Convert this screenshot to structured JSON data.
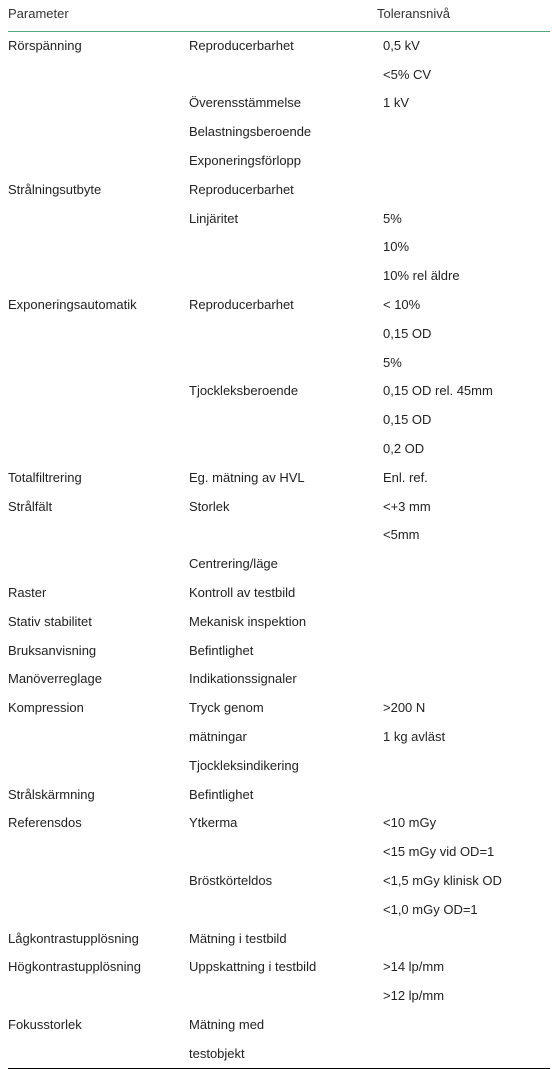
{
  "colors": {
    "border": "#000000",
    "green_rule": "#59a67a",
    "text": "#222222",
    "bg": "#ffffff"
  },
  "headers": {
    "parameter": "Parameter",
    "tolerance": "Toleransnivå"
  },
  "rows": [
    {
      "c1": "Rörspänning",
      "c2": "Reproducerbarhet",
      "c3": " 0,5 kV"
    },
    {
      "c1": "",
      "c2": "",
      "c3": "<5% CV"
    },
    {
      "c1": "",
      "c2": "Överensstämmelse",
      "c3": " 1 kV"
    },
    {
      "c1": "",
      "c2": "Belastningsberoende",
      "c3": ""
    },
    {
      "c1": "",
      "c2": "Exponeringsförlopp",
      "c3": ""
    },
    {
      "c1": "Strålningsutbyte",
      "c2": "Reproducerbarhet",
      "c3": ""
    },
    {
      "c1": "",
      "c2": "Linjäritet",
      "c3": " 5%"
    },
    {
      "c1": "",
      "c2": "",
      "c3": " 10%"
    },
    {
      "c1": "",
      "c2": "",
      "c3": " 10% rel äldre"
    },
    {
      "c1": "Exponeringsautomatik",
      "c2": "Reproducerbarhet",
      "c3": "<  10%"
    },
    {
      "c1": "",
      "c2": "",
      "c3": " 0,15 OD"
    },
    {
      "c1": "",
      "c2": "",
      "c3": " 5%"
    },
    {
      "c1": "",
      "c2": "Tjockleksberoende",
      "c3": " 0,15 OD rel. 45mm"
    },
    {
      "c1": "",
      "c2": "",
      "c3": " 0,15 OD"
    },
    {
      "c1": "",
      "c2": "",
      "c3": " 0,2 OD"
    },
    {
      "c1": "Totalfiltrering",
      "c2": "Eg. mätning av HVL",
      "c3": "Enl. ref."
    },
    {
      "c1": "Strålfält",
      "c2": "Storlek",
      "c3": "<+3 mm"
    },
    {
      "c1": "",
      "c2": "",
      "c3": "<5mm"
    },
    {
      "c1": "",
      "c2": "Centrering/läge",
      "c3": ""
    },
    {
      "c1": "Raster",
      "c2": "Kontroll av testbild",
      "c3": ""
    },
    {
      "c1": "Stativ stabilitet",
      "c2": "Mekanisk inspektion",
      "c3": ""
    },
    {
      "c1": "Bruksanvisning",
      "c2": "Befintlighet",
      "c3": ""
    },
    {
      "c1": "Manöverreglage",
      "c2": "Indikationssignaler",
      "c3": ""
    },
    {
      "c1": "Kompression",
      "c2": "Tryck genom",
      "c3": ">200 N"
    },
    {
      "c1": "",
      "c2": "mätningar",
      "c3": " 1 kg avläst"
    },
    {
      "c1": "",
      "c2": "Tjockleksindikering",
      "c3": ""
    },
    {
      "c1": "Strålskärmning",
      "c2": "Befintlighet",
      "c3": ""
    },
    {
      "c1": "Referensdos",
      "c2": "Ytkerma",
      "c3": "<10 mGy"
    },
    {
      "c1": "",
      "c2": "",
      "c3": "<15 mGy vid OD=1"
    },
    {
      "c1": "",
      "c2": "Bröstkörteldos",
      "c3": "<1,5 mGy klinisk OD"
    },
    {
      "c1": "",
      "c2": "",
      "c3": "<1,0 mGy OD=1"
    },
    {
      "c1": "Lågkontrastupplösning",
      "c2": "Mätning i testbild",
      "c3": ""
    },
    {
      "c1": "Högkontrastupplösning",
      "c2": "Uppskattning i testbild",
      "c3": ">14 lp/mm"
    },
    {
      "c1": "",
      "c2": "",
      "c3": ">12 lp/mm"
    },
    {
      "c1": "Fokusstorlek",
      "c2": "Mätning med",
      "c3": ""
    },
    {
      "c1": "",
      "c2": "testobjekt",
      "c3": ""
    }
  ]
}
